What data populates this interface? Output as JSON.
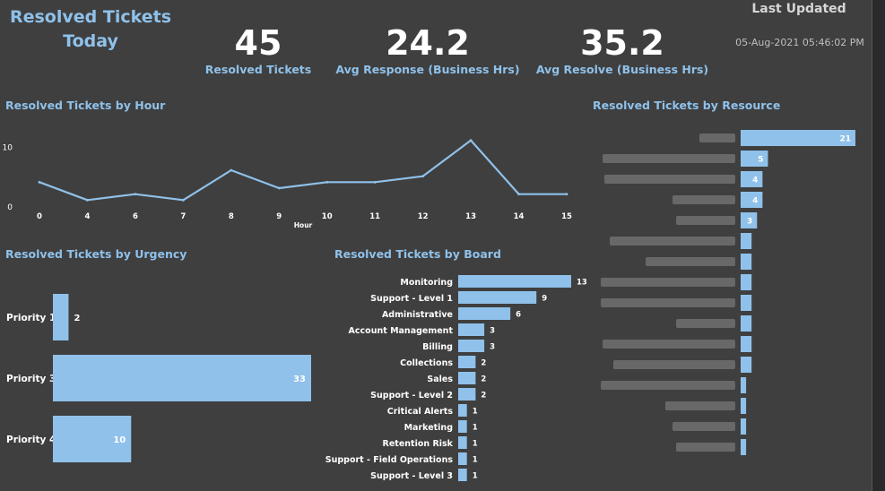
{
  "header": {
    "title_line1": "Resolved Tickets",
    "title_line2": "Today",
    "last_updated_label": "Last Updated",
    "last_updated_value": "05-Aug-2021 05:46:02 PM"
  },
  "kpis": [
    {
      "value": "45",
      "label": "Resolved Tickets"
    },
    {
      "value": "24.2",
      "label": "Avg Response (Business Hrs)"
    },
    {
      "value": "35.2",
      "label": "Avg Resolve (Business Hrs)"
    }
  ],
  "colors": {
    "accent": "#8fc1ea",
    "bar": "#8fc1ea",
    "background": "#3f3f3f"
  },
  "chart_data": [
    {
      "id": "hour",
      "type": "line",
      "title": "Resolved Tickets by Hour",
      "xlabel": "Hour",
      "ylabel": "",
      "x": [
        "0",
        "4",
        "6",
        "7",
        "8",
        "9",
        "10",
        "11",
        "12",
        "13",
        "14",
        "15"
      ],
      "values": [
        4,
        1,
        2,
        1,
        6,
        3,
        4,
        4,
        5,
        11,
        2,
        2
      ],
      "yticks": [
        "0",
        "10"
      ],
      "ylim": [
        0,
        12
      ],
      "grid": false
    },
    {
      "id": "urgency",
      "type": "bar",
      "orientation": "horizontal",
      "title": "Resolved Tickets by Urgency",
      "categories": [
        "Priority 1",
        "Priority 3",
        "Priority 4"
      ],
      "values": [
        2,
        33,
        10
      ],
      "xlim": [
        0,
        33
      ]
    },
    {
      "id": "board",
      "type": "bar",
      "orientation": "horizontal",
      "title": "Resolved Tickets by Board",
      "categories": [
        "Monitoring",
        "Support - Level 1",
        "Administrative",
        "Account Management",
        "Billing",
        "Collections",
        "Sales",
        "Support - Level 2",
        "Critical Alerts",
        "Marketing",
        "Retention Risk",
        "Support - Field Operations",
        "Support - Level 3"
      ],
      "values": [
        13,
        9,
        6,
        3,
        3,
        2,
        2,
        2,
        1,
        1,
        1,
        1,
        1
      ],
      "xlim": [
        0,
        13
      ]
    },
    {
      "id": "resource",
      "type": "bar",
      "orientation": "horizontal",
      "title": "Resolved Tickets by Resource",
      "categories_blurred": true,
      "values": [
        21,
        5,
        4,
        4,
        3,
        2,
        2,
        2,
        2,
        2,
        2,
        2,
        1,
        1,
        1,
        1
      ],
      "value_labels": [
        "21",
        "5",
        "4",
        "4",
        "3",
        "",
        "",
        "",
        "",
        "",
        "",
        "",
        "",
        "",
        "",
        ""
      ],
      "xlim": [
        0,
        21
      ]
    }
  ]
}
